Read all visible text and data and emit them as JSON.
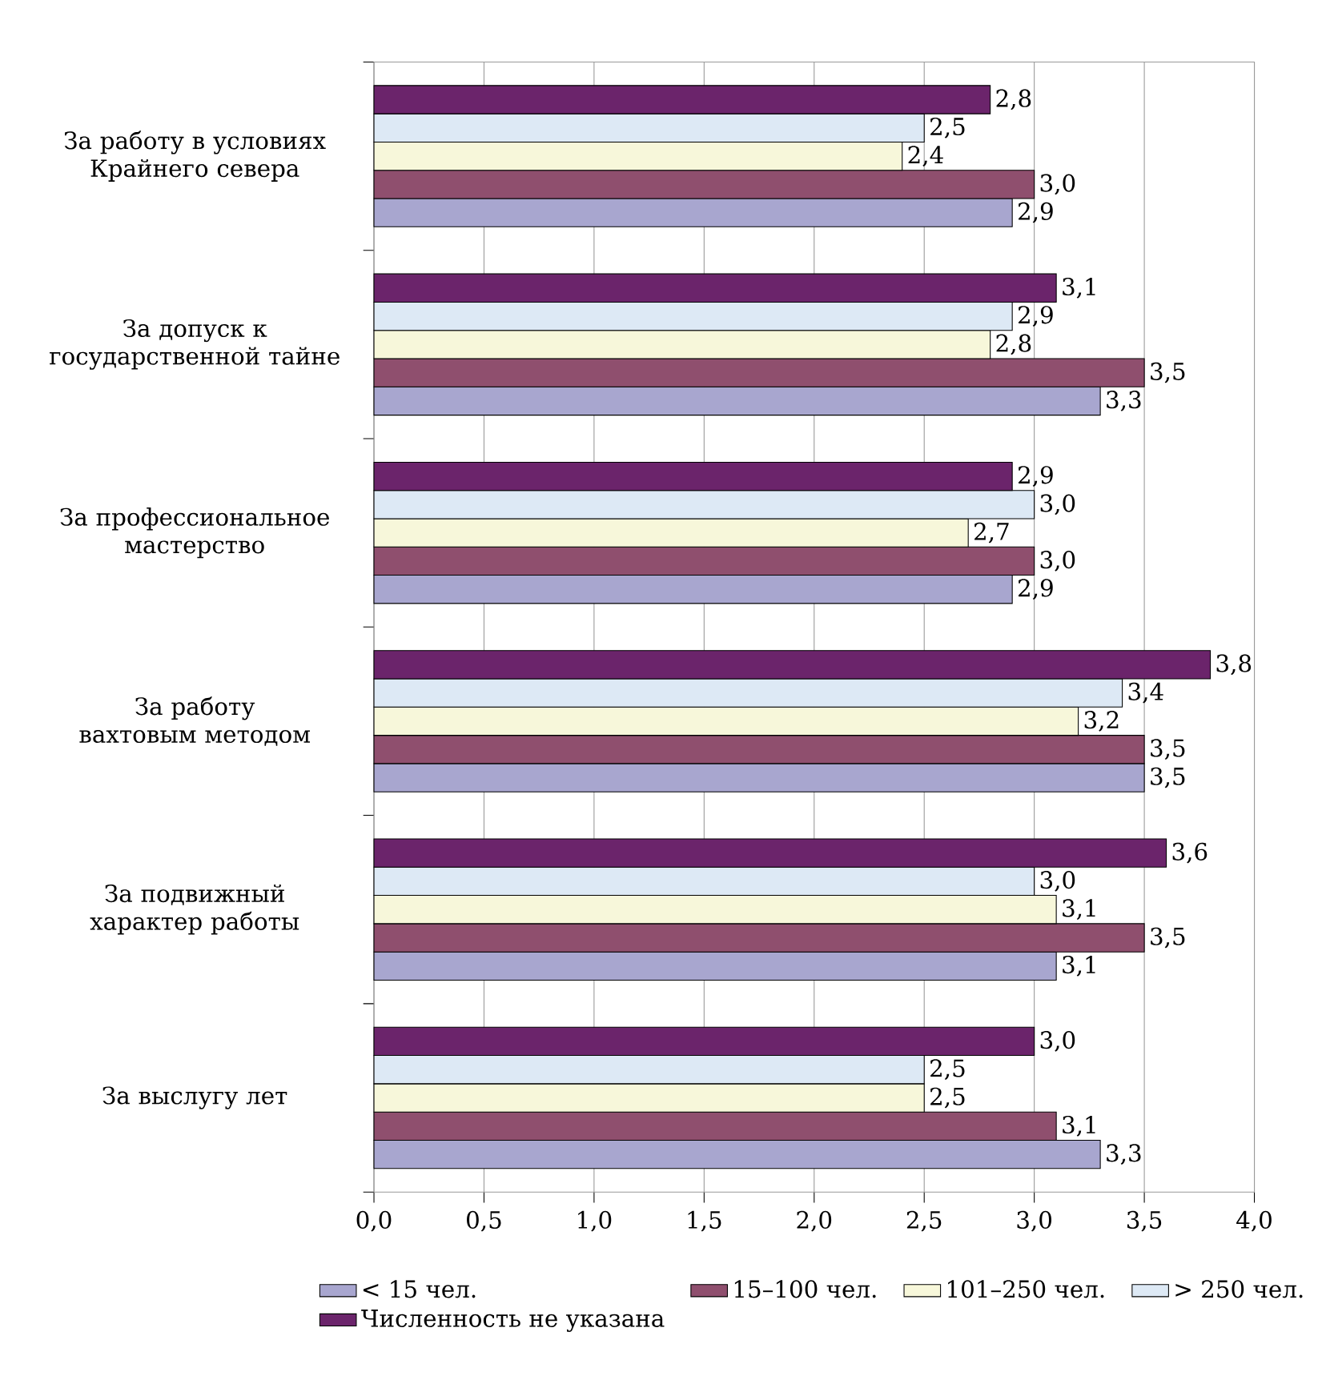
{
  "chart_data": {
    "type": "bar",
    "orientation": "horizontal",
    "categories": [
      "За работу в условиях Крайнего севера",
      "За допуск к государственной тайне",
      "За профессиональное мастерство",
      "За работу вахтовым методом",
      "За подвижный характер работы",
      "За выслугу лет"
    ],
    "series": [
      {
        "name": "< 15 чел.",
        "color": "#a8a6cf",
        "values": [
          2.9,
          3.3,
          2.9,
          3.5,
          3.1,
          3.3
        ],
        "value_labels": [
          "2,9",
          "3,3",
          "2,9",
          "3,5",
          "3,1",
          "3,3"
        ]
      },
      {
        "name": "15–100 чел.",
        "color": "#8f4f6e",
        "values": [
          3.0,
          3.5,
          3.0,
          3.5,
          3.5,
          3.1
        ],
        "value_labels": [
          "3,0",
          "3,5",
          "3,0",
          "3,5",
          "3,5",
          "3,1"
        ]
      },
      {
        "name": "101–250 чел.",
        "color": "#f7f7da",
        "values": [
          2.4,
          2.8,
          2.7,
          3.2,
          3.1,
          2.5
        ],
        "value_labels": [
          "2,4",
          "2,8",
          "2,7",
          "3,2",
          "3,1",
          "2,5"
        ]
      },
      {
        "name": "> 250 чел.",
        "color": "#dde9f5",
        "values": [
          2.5,
          2.9,
          3.0,
          3.4,
          3.0,
          2.5
        ],
        "value_labels": [
          "2,5",
          "2,9",
          "3,0",
          "3,4",
          "3,0",
          "2,5"
        ]
      },
      {
        "name": "Численность не указана",
        "color": "#6b246b",
        "values": [
          2.8,
          3.1,
          2.9,
          3.8,
          3.6,
          3.0
        ],
        "value_labels": [
          "2,8",
          "3,1",
          "2,9",
          "3,8",
          "3,6",
          "3,0"
        ]
      }
    ],
    "xlim": [
      0,
      4
    ],
    "xticks": [
      {
        "value": 0,
        "label": "0,0"
      },
      {
        "value": 0.5,
        "label": "0,5"
      },
      {
        "value": 1,
        "label": "1,0"
      },
      {
        "value": 1.5,
        "label": "1,5"
      },
      {
        "value": 2,
        "label": "2,0"
      },
      {
        "value": 2.5,
        "label": "2,5"
      },
      {
        "value": 3,
        "label": "3,0"
      },
      {
        "value": 3.5,
        "label": "3,5"
      },
      {
        "value": 4,
        "label": "4,0"
      }
    ],
    "grid": "x",
    "legend": "bottom"
  }
}
